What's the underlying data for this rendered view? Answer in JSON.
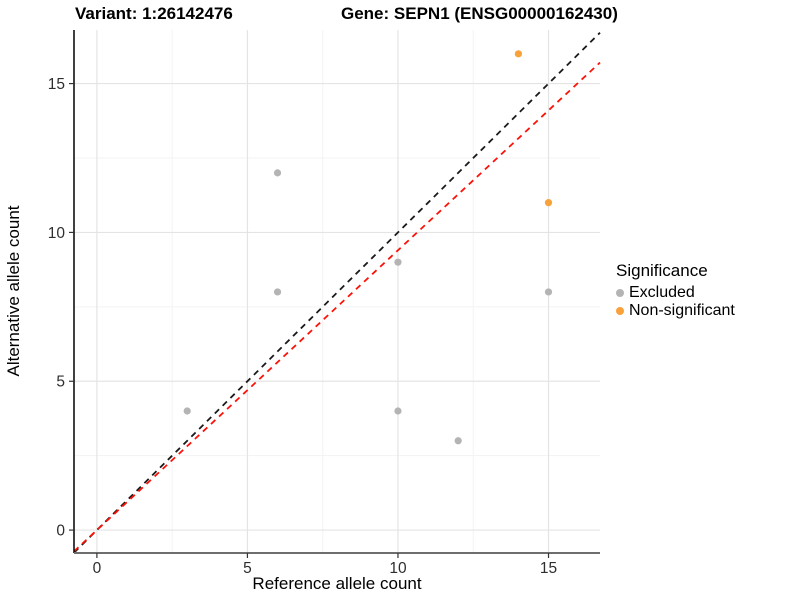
{
  "titles": {
    "variant": "Variant: 1:26142476",
    "gene": "Gene: SEPN1 (ENSG00000162430)"
  },
  "chart_data": {
    "type": "scatter",
    "xlabel": "Reference allele count",
    "ylabel": "Alternative allele count",
    "xlim": [
      -0.76,
      16.71
    ],
    "ylim": [
      -0.77,
      16.8
    ],
    "xticks": [
      0,
      5,
      10,
      15
    ],
    "yticks": [
      0,
      5,
      10,
      15
    ],
    "minor_xticks": [
      2.5,
      7.5,
      12.5
    ],
    "minor_yticks": [
      2.5,
      7.5,
      12.5
    ],
    "grid": true,
    "series": [
      {
        "name": "Excluded",
        "color": "#b4b4b4",
        "points": [
          [
            3,
            4
          ],
          [
            6,
            8
          ],
          [
            6,
            12
          ],
          [
            10,
            4
          ],
          [
            10,
            9
          ],
          [
            12,
            3
          ],
          [
            15,
            8
          ]
        ]
      },
      {
        "name": "Non-significant",
        "color": "#f9a13a",
        "points": [
          [
            14,
            16
          ],
          [
            15,
            11
          ]
        ]
      }
    ],
    "ablines": [
      {
        "name": "identity-line",
        "slope": 1,
        "intercept": 0,
        "color": "#1a1a1a",
        "style": "dashed"
      },
      {
        "name": "ratio-line",
        "slope": 0.94,
        "intercept": 0,
        "color": "#fb1309",
        "style": "dashed"
      }
    ],
    "legend": {
      "title": "Significance",
      "position": "right",
      "items": [
        {
          "label": "Excluded",
          "color": "#b4b4b4"
        },
        {
          "label": "Non-significant",
          "color": "#f9a13a"
        }
      ]
    }
  }
}
